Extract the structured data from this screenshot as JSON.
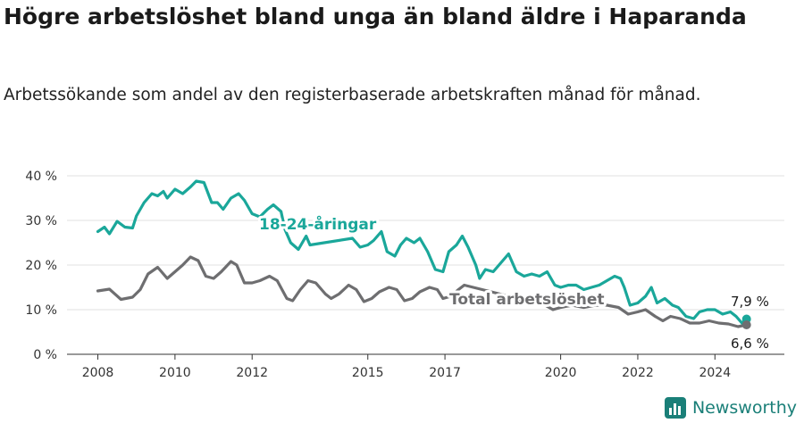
{
  "header": {
    "title": "Högre arbetslöshet bland unga än bland äldre i Haparanda",
    "subtitle": "Arbetssökande som andel av den registerbaserade arbetskraften månad för månad."
  },
  "brand": {
    "name": "Newsworthy",
    "icon": "bar-chart-logo-icon"
  },
  "colors": {
    "youth": "#1aa79a",
    "total": "#6e6e70",
    "grid": "#e0e0e0",
    "axis": "#333333"
  },
  "chart_data": {
    "type": "line",
    "title": "Högre arbetslöshet bland unga än bland äldre i Haparanda",
    "subtitle": "Arbetssökande som andel av den registerbaserade arbetskraften månad för månad.",
    "ylim": [
      0,
      40
    ],
    "y_ticks": [
      "0 %",
      "10 %",
      "20 %",
      "30 %",
      "40 %"
    ],
    "xlim": [
      2007.2,
      2025.8
    ],
    "x_ticks": [
      "2008",
      "2010",
      "2012",
      "2015",
      "2017",
      "2020",
      "2022",
      "2024"
    ],
    "x_tick_values": [
      2008,
      2010,
      2012,
      2015,
      2017,
      2020,
      2022,
      2024
    ],
    "grid": true,
    "series": [
      {
        "name": "18-24-åringar",
        "color": "#1aa79a",
        "end_label": "7,9 %",
        "points": [
          [
            2008.0,
            27.5
          ],
          [
            2008.17,
            28.5
          ],
          [
            2008.3,
            27.0
          ],
          [
            2008.5,
            29.8
          ],
          [
            2008.7,
            28.5
          ],
          [
            2008.9,
            28.3
          ],
          [
            2009.0,
            31.0
          ],
          [
            2009.2,
            34.0
          ],
          [
            2009.4,
            36.0
          ],
          [
            2009.55,
            35.5
          ],
          [
            2009.7,
            36.5
          ],
          [
            2009.8,
            35.0
          ],
          [
            2010.0,
            37.0
          ],
          [
            2010.2,
            36.0
          ],
          [
            2010.4,
            37.5
          ],
          [
            2010.55,
            38.8
          ],
          [
            2010.75,
            38.5
          ],
          [
            2010.95,
            34.0
          ],
          [
            2011.1,
            34.0
          ],
          [
            2011.25,
            32.5
          ],
          [
            2011.45,
            35.0
          ],
          [
            2011.65,
            36.0
          ],
          [
            2011.8,
            34.5
          ],
          [
            2012.0,
            31.5
          ],
          [
            2012.2,
            30.8
          ],
          [
            2012.4,
            32.5
          ],
          [
            2012.55,
            33.5
          ],
          [
            2012.75,
            32.0
          ],
          [
            2012.85,
            28.0
          ],
          [
            2013.0,
            25.0
          ],
          [
            2013.2,
            23.5
          ],
          [
            2013.4,
            26.5
          ],
          [
            2013.5,
            24.5
          ],
          [
            2014.6,
            26.0
          ],
          [
            2014.8,
            24.0
          ],
          [
            2015.0,
            24.5
          ],
          [
            2015.15,
            25.5
          ],
          [
            2015.35,
            27.5
          ],
          [
            2015.5,
            23.0
          ],
          [
            2015.7,
            22.0
          ],
          [
            2015.85,
            24.5
          ],
          [
            2016.0,
            26.0
          ],
          [
            2016.2,
            25.0
          ],
          [
            2016.35,
            26.0
          ],
          [
            2016.55,
            23.0
          ],
          [
            2016.75,
            19.0
          ],
          [
            2016.95,
            18.5
          ],
          [
            2017.1,
            23.0
          ],
          [
            2017.3,
            24.5
          ],
          [
            2017.45,
            26.5
          ],
          [
            2017.6,
            24.0
          ],
          [
            2017.8,
            20.0
          ],
          [
            2017.9,
            17.0
          ],
          [
            2018.05,
            19.0
          ],
          [
            2018.25,
            18.5
          ],
          [
            2018.45,
            20.5
          ],
          [
            2018.65,
            22.5
          ],
          [
            2018.85,
            18.5
          ],
          [
            2019.05,
            17.5
          ],
          [
            2019.25,
            18.0
          ],
          [
            2019.45,
            17.5
          ],
          [
            2019.65,
            18.5
          ],
          [
            2019.85,
            15.5
          ],
          [
            2020.0,
            15.0
          ],
          [
            2020.2,
            15.5
          ],
          [
            2020.4,
            15.5
          ],
          [
            2020.6,
            14.5
          ],
          [
            2020.8,
            15.0
          ],
          [
            2021.0,
            15.5
          ],
          [
            2021.2,
            16.5
          ],
          [
            2021.4,
            17.5
          ],
          [
            2021.55,
            17.0
          ],
          [
            2021.65,
            15.0
          ],
          [
            2021.8,
            11.0
          ],
          [
            2022.0,
            11.5
          ],
          [
            2022.2,
            13.0
          ],
          [
            2022.35,
            15.0
          ],
          [
            2022.5,
            11.5
          ],
          [
            2022.7,
            12.5
          ],
          [
            2022.9,
            11.0
          ],
          [
            2023.05,
            10.5
          ],
          [
            2023.25,
            8.5
          ],
          [
            2023.45,
            8.0
          ],
          [
            2023.6,
            9.5
          ],
          [
            2023.8,
            10.0
          ],
          [
            2024.0,
            10.0
          ],
          [
            2024.2,
            9.0
          ],
          [
            2024.4,
            9.5
          ],
          [
            2024.55,
            8.5
          ],
          [
            2024.7,
            7.0
          ],
          [
            2024.82,
            7.9
          ]
        ]
      },
      {
        "name": "Total arbetslöshet",
        "color": "#6e6e70",
        "end_label": "6,6 %",
        "points": [
          [
            2008.0,
            14.2
          ],
          [
            2008.3,
            14.6
          ],
          [
            2008.6,
            12.3
          ],
          [
            2008.9,
            12.8
          ],
          [
            2009.1,
            14.5
          ],
          [
            2009.3,
            18.0
          ],
          [
            2009.55,
            19.5
          ],
          [
            2009.8,
            17.0
          ],
          [
            2010.0,
            18.5
          ],
          [
            2010.2,
            20.0
          ],
          [
            2010.4,
            21.8
          ],
          [
            2010.6,
            21.0
          ],
          [
            2010.8,
            17.5
          ],
          [
            2011.0,
            17.0
          ],
          [
            2011.2,
            18.5
          ],
          [
            2011.45,
            20.8
          ],
          [
            2011.6,
            20.0
          ],
          [
            2011.8,
            16.0
          ],
          [
            2012.0,
            16.0
          ],
          [
            2012.2,
            16.5
          ],
          [
            2012.45,
            17.5
          ],
          [
            2012.65,
            16.5
          ],
          [
            2012.9,
            12.5
          ],
          [
            2013.05,
            12.0
          ],
          [
            2013.25,
            14.5
          ],
          [
            2013.45,
            16.5
          ],
          [
            2013.65,
            16.0
          ],
          [
            2013.9,
            13.5
          ],
          [
            2014.05,
            12.5
          ],
          [
            2014.25,
            13.5
          ],
          [
            2014.5,
            15.5
          ],
          [
            2014.7,
            14.5
          ],
          [
            2014.9,
            11.8
          ],
          [
            2015.1,
            12.5
          ],
          [
            2015.3,
            14.0
          ],
          [
            2015.55,
            15.0
          ],
          [
            2015.75,
            14.5
          ],
          [
            2015.95,
            12.0
          ],
          [
            2016.15,
            12.5
          ],
          [
            2016.35,
            14.0
          ],
          [
            2016.6,
            15.0
          ],
          [
            2016.8,
            14.5
          ],
          [
            2016.95,
            12.5
          ],
          [
            2017.15,
            13.0
          ],
          [
            2017.35,
            14.5
          ],
          [
            2017.5,
            15.5
          ],
          [
            2019.6,
            11.0
          ],
          [
            2019.8,
            10.0
          ],
          [
            2020.0,
            10.5
          ],
          [
            2020.3,
            11.0
          ],
          [
            2020.6,
            10.5
          ],
          [
            2020.9,
            11.0
          ],
          [
            2021.2,
            11.0
          ],
          [
            2021.5,
            10.5
          ],
          [
            2021.75,
            9.0
          ],
          [
            2022.0,
            9.5
          ],
          [
            2022.2,
            10.0
          ],
          [
            2022.45,
            8.5
          ],
          [
            2022.65,
            7.5
          ],
          [
            2022.85,
            8.5
          ],
          [
            2023.1,
            8.0
          ],
          [
            2023.35,
            7.0
          ],
          [
            2023.6,
            7.0
          ],
          [
            2023.85,
            7.5
          ],
          [
            2024.1,
            7.0
          ],
          [
            2024.35,
            6.8
          ],
          [
            2024.6,
            6.2
          ],
          [
            2024.82,
            6.6
          ]
        ]
      }
    ]
  }
}
